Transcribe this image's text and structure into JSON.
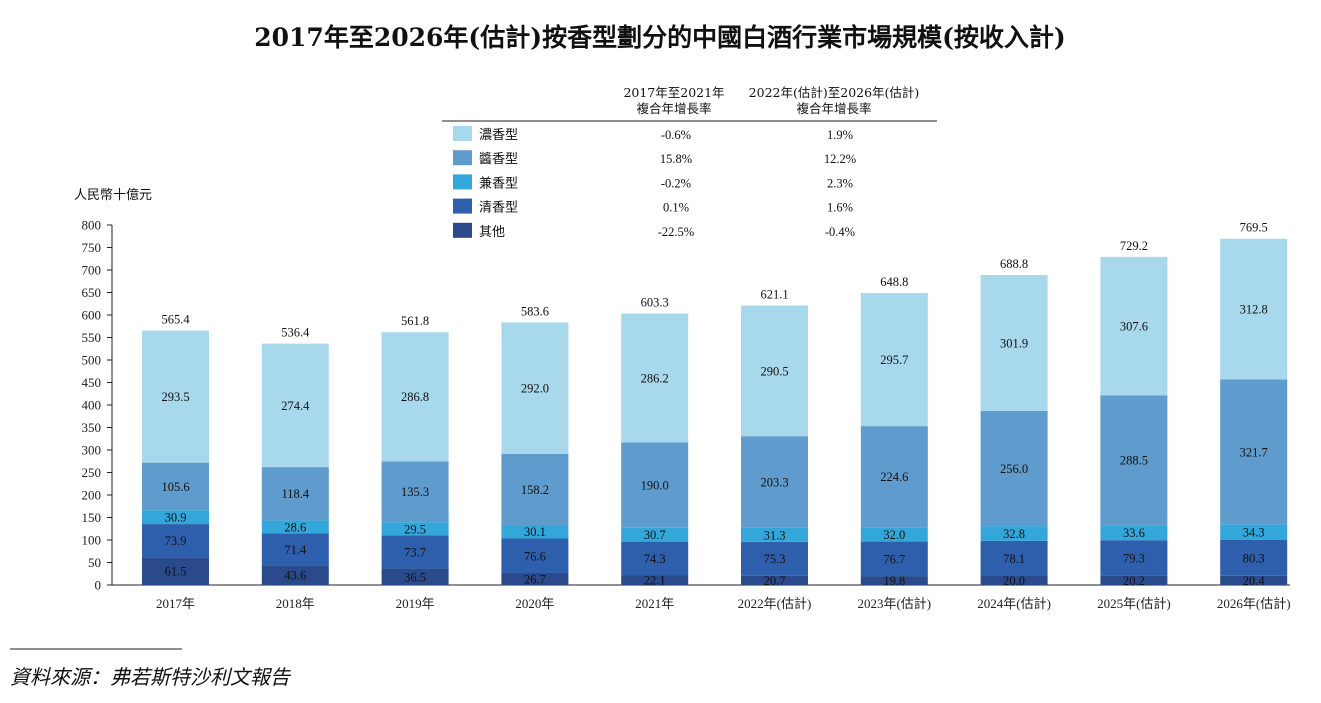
{
  "chart_data": {
    "type": "bar",
    "stacked": true,
    "title": "2017年至2026年(估計)按香型劃分的中國白酒行業市場規模(按收入計)",
    "ylabel": "人民幣十億元",
    "ylim": [
      0,
      800
    ],
    "yticks": [
      0,
      50,
      100,
      150,
      200,
      250,
      300,
      350,
      400,
      450,
      500,
      550,
      600,
      650,
      700,
      750,
      800
    ],
    "categories": [
      "2017年",
      "2018年",
      "2019年",
      "2020年",
      "2021年",
      "2022年(估計)",
      "2023年(估計)",
      "2024年(估計)",
      "2025年(估計)",
      "2026年(估計)"
    ],
    "series": [
      {
        "name": "其他",
        "color": "#2a4a8c",
        "values": [
          61.5,
          43.6,
          36.5,
          26.7,
          22.1,
          20.7,
          19.8,
          20.0,
          20.2,
          20.4
        ],
        "labels": [
          "61.5",
          "43.6",
          "36.5",
          "26.7",
          "22.1",
          "20.7",
          "19.8",
          "20.0",
          "20.2",
          "20.4"
        ]
      },
      {
        "name": "清香型",
        "color": "#2e5fad",
        "values": [
          73.9,
          71.4,
          73.7,
          76.6,
          74.3,
          75.3,
          76.7,
          78.1,
          79.3,
          80.3
        ],
        "labels": [
          "73.9",
          "71.4",
          "73.7",
          "76.6",
          "74.3",
          "75.3",
          "76.7",
          "78.1",
          "79.3",
          "80.3"
        ]
      },
      {
        "name": "兼香型",
        "color": "#33a7d9",
        "values": [
          30.9,
          28.6,
          29.5,
          30.1,
          30.7,
          31.3,
          32.0,
          32.8,
          33.6,
          34.3
        ],
        "labels": [
          "30.9",
          "28.6",
          "29.5",
          "30.1",
          "30.7",
          "31.3",
          "32.0",
          "32.8",
          "33.6",
          "34.3"
        ]
      },
      {
        "name": "醬香型",
        "color": "#5f9bcd",
        "values": [
          105.6,
          118.4,
          135.3,
          158.2,
          190.0,
          203.3,
          224.6,
          256.0,
          288.5,
          321.7
        ],
        "labels": [
          "105.6",
          "118.4",
          "135.3",
          "158.2",
          "190.0",
          "203.3",
          "224.6",
          "256.0",
          "288.5",
          "321.7"
        ]
      },
      {
        "name": "濃香型",
        "color": "#a8d8ec",
        "values": [
          293.5,
          274.4,
          286.8,
          292.0,
          286.2,
          290.5,
          295.7,
          301.9,
          307.6,
          312.8
        ],
        "labels": [
          "293.5",
          "274.4",
          "286.8",
          "292.0",
          "286.2",
          "290.5",
          "295.7",
          "301.9",
          "307.6",
          "312.8"
        ]
      }
    ],
    "totals": [
      565.4,
      536.4,
      561.8,
      583.6,
      603.3,
      621.1,
      648.8,
      688.8,
      729.2,
      769.5
    ],
    "total_labels": [
      "565.4",
      "536.4",
      "561.8",
      "583.6",
      "603.3",
      "621.1",
      "648.8",
      "688.8",
      "729.2",
      "769.5"
    ],
    "legend": {
      "headers": [
        "2017年至2021年",
        "複合年增長率",
        "2022年(估計)至2026年(估計)",
        "複合年增長率"
      ],
      "rows": [
        {
          "name": "濃香型",
          "color": "#a8d8ec",
          "cagr1": "-0.6%",
          "cagr2": "1.9%"
        },
        {
          "name": "醬香型",
          "color": "#5f9bcd",
          "cagr1": "15.8%",
          "cagr2": "12.2%"
        },
        {
          "name": "兼香型",
          "color": "#33a7d9",
          "cagr1": "-0.2%",
          "cagr2": "2.3%"
        },
        {
          "name": "清香型",
          "color": "#2e5fad",
          "cagr1": "0.1%",
          "cagr2": "1.6%"
        },
        {
          "name": "其他",
          "color": "#2a4a8c",
          "cagr1": "-22.5%",
          "cagr2": "-0.4%"
        }
      ]
    }
  },
  "source": "資料來源：弗若斯特沙利文報告"
}
